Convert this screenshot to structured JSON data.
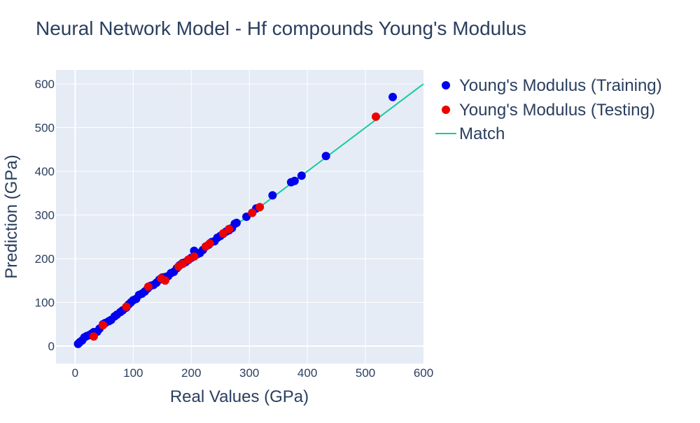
{
  "chart_data": {
    "type": "scatter",
    "title": "Neural Network Model - Hf compounds Young's Modulus",
    "xlabel": "Real Values (GPa)",
    "ylabel": "Prediction (GPa)",
    "xlim": [
      -33,
      600
    ],
    "ylim": [
      -40,
      632
    ],
    "xticks": [
      0,
      100,
      200,
      300,
      400,
      500,
      600
    ],
    "yticks": [
      0,
      100,
      200,
      300,
      400,
      500,
      600
    ],
    "grid": true,
    "legend_position": "top-right, outside plot",
    "colors": {
      "training": "#0000ee",
      "testing": "#ee0000",
      "match": "#19c9a0",
      "plot_bg": "#e5ecf6",
      "text": "#2a3f5f"
    },
    "series": [
      {
        "name": "Young's Modulus (Training)",
        "mode": "markers",
        "color": "#0000ee",
        "x": [
          5,
          8,
          12,
          16,
          20,
          24,
          28,
          32,
          38,
          42,
          48,
          52,
          58,
          62,
          68,
          72,
          78,
          82,
          88,
          92,
          96,
          100,
          105,
          110,
          115,
          120,
          125,
          130,
          135,
          140,
          145,
          150,
          155,
          160,
          165,
          170,
          175,
          180,
          185,
          190,
          195,
          200,
          205,
          210,
          215,
          220,
          225,
          230,
          235,
          240,
          245,
          250,
          255,
          260,
          265,
          270,
          275,
          278,
          295,
          305,
          312,
          340,
          372,
          378,
          390,
          432,
          547
        ],
        "y": [
          5,
          9,
          13,
          20,
          23,
          25,
          28,
          32,
          33,
          40,
          50,
          53,
          57,
          60,
          68,
          72,
          78,
          82,
          88,
          95,
          100,
          105,
          108,
          117,
          120,
          125,
          132,
          138,
          140,
          145,
          152,
          157,
          158,
          160,
          167,
          170,
          178,
          185,
          190,
          192,
          197,
          202,
          218,
          210,
          213,
          220,
          228,
          232,
          238,
          240,
          248,
          252,
          257,
          262,
          265,
          270,
          280,
          282,
          296,
          305,
          315,
          345,
          375,
          378,
          390,
          435,
          570
        ]
      },
      {
        "name": "Young's Modulus (Testing)",
        "mode": "markers",
        "color": "#ee0000",
        "x": [
          32,
          48,
          88,
          126,
          148,
          155,
          178,
          185,
          195,
          205,
          225,
          232,
          255,
          265,
          305,
          318,
          518
        ],
        "y": [
          22,
          48,
          90,
          136,
          155,
          150,
          182,
          188,
          198,
          205,
          228,
          235,
          258,
          268,
          305,
          318,
          525
        ]
      },
      {
        "name": "Match",
        "mode": "lines",
        "color": "#19c9a0",
        "x": [
          0,
          600
        ],
        "y": [
          0,
          600
        ]
      }
    ]
  }
}
